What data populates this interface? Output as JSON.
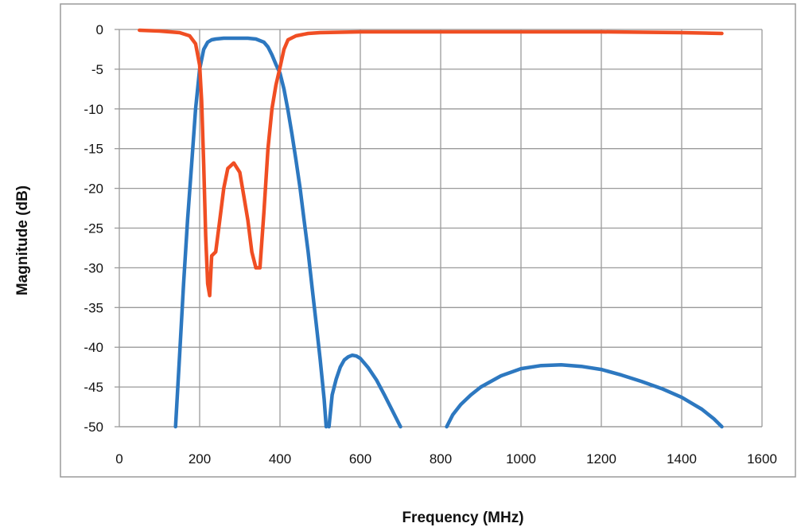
{
  "chart_data": {
    "type": "line",
    "xlabel": "Frequency (MHz)",
    "ylabel": "Magnitude (dB)",
    "xlim": [
      0,
      1600
    ],
    "ylim": [
      -50,
      0
    ],
    "xticks": [
      0,
      200,
      400,
      600,
      800,
      1000,
      1200,
      1400,
      1600
    ],
    "yticks": [
      0,
      -5,
      -10,
      -15,
      -20,
      -25,
      -30,
      -35,
      -40,
      -45,
      -50
    ],
    "grid": true,
    "legend": "none",
    "colors": {
      "series_1": "#f04e23",
      "series_2": "#2d78c0",
      "grid": "#9a9a9a",
      "frame": "#9a9a9a"
    },
    "series": [
      {
        "color": "#f04e23",
        "x": [
          50,
          100,
          150,
          175,
          190,
          200,
          205,
          210,
          215,
          220,
          225,
          230,
          240,
          250,
          260,
          270,
          285,
          300,
          310,
          320,
          330,
          340,
          350,
          360,
          370,
          380,
          390,
          400,
          410,
          420,
          440,
          470,
          500,
          600,
          800,
          1000,
          1200,
          1400,
          1500
        ],
        "y": [
          -0.1,
          -0.2,
          -0.4,
          -0.8,
          -1.8,
          -4.5,
          -9,
          -17,
          -26,
          -32,
          -33.5,
          -28.5,
          -28,
          -24,
          -20,
          -17.5,
          -16.8,
          -18,
          -21,
          -24,
          -28,
          -30,
          -30,
          -23,
          -15,
          -10,
          -7,
          -4.8,
          -2.5,
          -1.3,
          -0.8,
          -0.5,
          -0.4,
          -0.3,
          -0.3,
          -0.3,
          -0.3,
          -0.4,
          -0.5
        ]
      },
      {
        "color": "#2d78c0",
        "segments": [
          {
            "x": [
              140,
              150,
              160,
              170,
              180,
              190,
              200,
              210,
              220,
              230,
              240,
              260,
              280,
              300,
              320,
              340,
              360,
              370,
              380,
              390,
              400,
              410,
              420,
              430,
              440,
              450,
              460,
              470,
              480,
              490,
              500,
              510,
              515
            ],
            "y": [
              -50,
              -41,
              -32,
              -24,
              -17,
              -10,
              -5,
              -2.5,
              -1.6,
              -1.3,
              -1.2,
              -1.1,
              -1.1,
              -1.1,
              -1.1,
              -1.2,
              -1.6,
              -2.2,
              -3.2,
              -4.4,
              -5.5,
              -7.5,
              -10.2,
              -13.2,
              -16.5,
              -20,
              -24,
              -28,
              -32.5,
              -37,
              -41.5,
              -46.5,
              -50
            ]
          },
          {
            "x": [
              522,
              530,
              540,
              550,
              560,
              570,
              580,
              590,
              600,
              620,
              640,
              660,
              680,
              700
            ],
            "y": [
              -50,
              -46,
              -44,
              -42.5,
              -41.6,
              -41.2,
              -41,
              -41.1,
              -41.4,
              -42.6,
              -44.1,
              -46,
              -48,
              -50
            ]
          },
          {
            "x": [
              815,
              830,
              850,
              875,
              900,
              950,
              1000,
              1050,
              1100,
              1150,
              1200,
              1250,
              1300,
              1350,
              1400,
              1450,
              1480,
              1500
            ],
            "y": [
              -50,
              -48.5,
              -47.2,
              -46,
              -45,
              -43.6,
              -42.7,
              -42.3,
              -42.2,
              -42.4,
              -42.8,
              -43.5,
              -44.3,
              -45.2,
              -46.3,
              -47.8,
              -49,
              -50
            ]
          }
        ]
      }
    ]
  }
}
